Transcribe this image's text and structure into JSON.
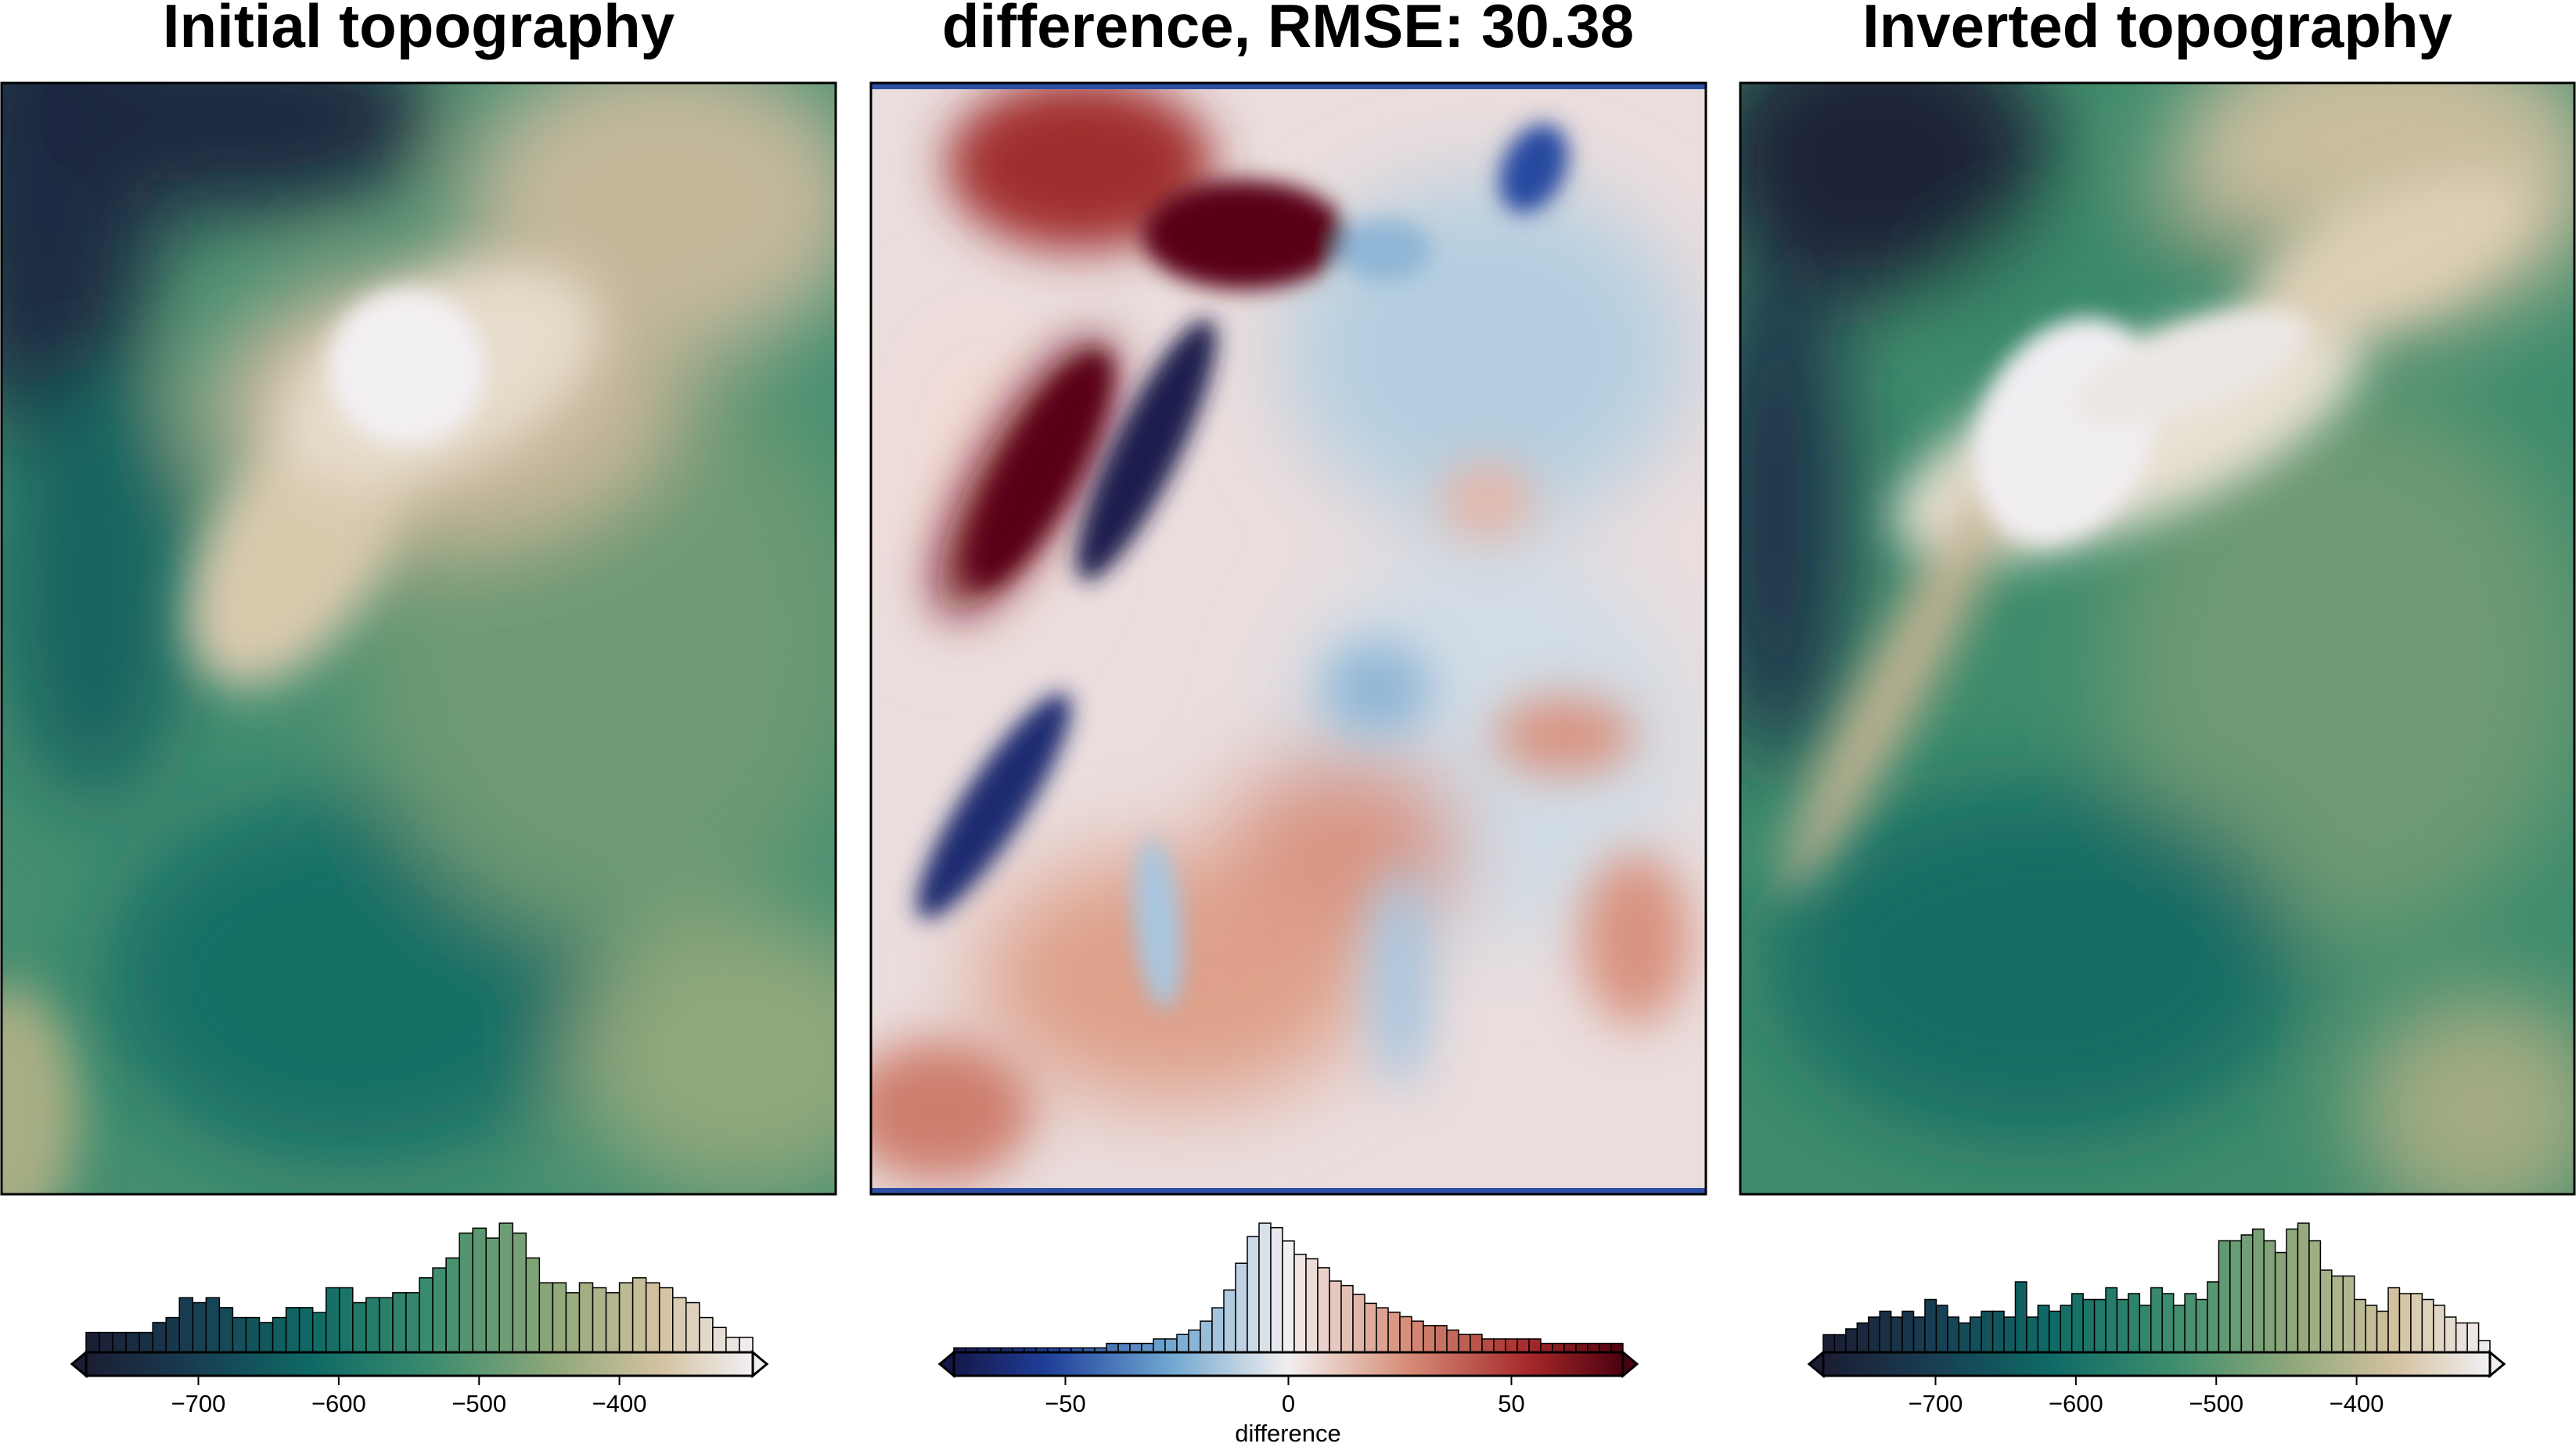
{
  "chart_data": [
    {
      "type": "heatmap",
      "title": "Initial topography",
      "colormap": "topography (dark navy -> teal -> green -> tan -> white)",
      "colorbar": {
        "range": [
          -780,
          -305
        ],
        "ticks": [
          -700,
          -600,
          -500,
          -400
        ],
        "tick_labels": [
          "−700",
          "−600",
          "−500",
          "−400"
        ],
        "label": "",
        "triangles": "both",
        "histogram": [
          4,
          4,
          4,
          4,
          4,
          6,
          7,
          11,
          10,
          11,
          9,
          7,
          7,
          6,
          7,
          9,
          9,
          8,
          13,
          13,
          10,
          11,
          11,
          12,
          12,
          15,
          17,
          19,
          24,
          25,
          23,
          26,
          24,
          19,
          14,
          14,
          12,
          14,
          13,
          12,
          14,
          15,
          14,
          13,
          11,
          10,
          7,
          5,
          3,
          3
        ]
      }
    },
    {
      "type": "heatmap",
      "title": "difference, RMSE: 30.38",
      "rmse": 30.38,
      "colormap": "diverging blue-white-red",
      "colorbar": {
        "range": [
          -75,
          75
        ],
        "ticks": [
          -50,
          0,
          50
        ],
        "tick_labels": [
          "−50",
          "0",
          "50"
        ],
        "label": "difference",
        "triangles": "both",
        "histogram": [
          1,
          1,
          1,
          1,
          1,
          1,
          1,
          1,
          1,
          1,
          1,
          1,
          1,
          2,
          2,
          2,
          2,
          3,
          3,
          4,
          5,
          7,
          10,
          14,
          20,
          26,
          29,
          28,
          25,
          22,
          21,
          19,
          16,
          15,
          13,
          11,
          10,
          9,
          8,
          7,
          6,
          6,
          5,
          4,
          4,
          3,
          3,
          3,
          3,
          3,
          2,
          2,
          2,
          2,
          2,
          2,
          2
        ]
      }
    },
    {
      "type": "heatmap",
      "title": "Inverted topography",
      "colormap": "topography (dark navy -> teal -> green -> tan -> white)",
      "colorbar": {
        "range": [
          -780,
          -305
        ],
        "ticks": [
          -700,
          -600,
          -500,
          -400
        ],
        "tick_labels": [
          "−700",
          "−600",
          "−500",
          "−400"
        ],
        "label": "",
        "triangles": "both",
        "histogram": [
          3,
          3,
          4,
          5,
          6,
          7,
          6,
          7,
          6,
          9,
          8,
          6,
          5,
          6,
          7,
          7,
          6,
          12,
          6,
          8,
          7,
          8,
          10,
          9,
          9,
          11,
          9,
          10,
          8,
          11,
          10,
          8,
          10,
          9,
          12,
          19,
          19,
          20,
          21,
          19,
          17,
          21,
          22,
          19,
          14,
          13,
          13,
          9,
          8,
          7,
          11,
          10,
          10,
          9,
          8,
          6,
          5,
          5,
          2
        ]
      }
    }
  ]
}
